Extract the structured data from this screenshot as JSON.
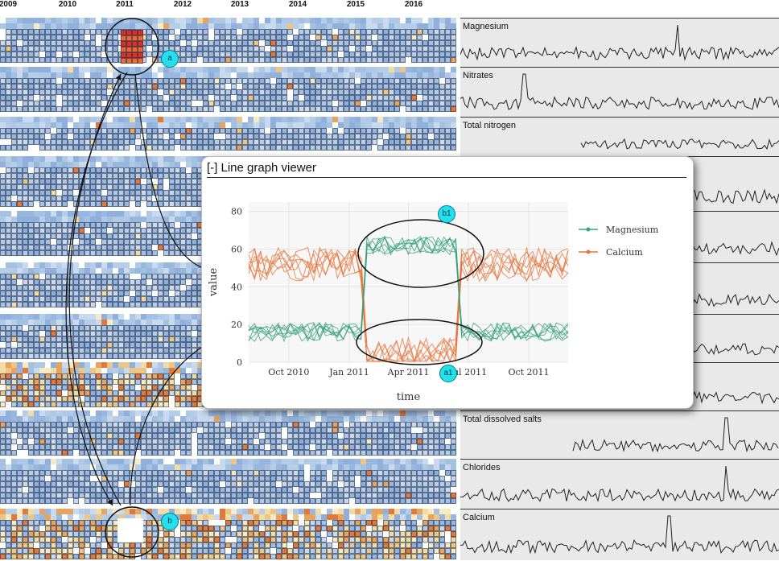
{
  "timeline": {
    "years": [
      "2009",
      "2010",
      "2011",
      "2012",
      "2013",
      "2014",
      "2015",
      "2016"
    ]
  },
  "sparklines": {
    "panels": [
      {
        "label": "Magnesium"
      },
      {
        "label": "Nitrates"
      },
      {
        "label": "Total nitrogen"
      },
      {
        "label": ""
      },
      {
        "label": ""
      },
      {
        "label": ""
      },
      {
        "label": ""
      },
      {
        "label": ""
      },
      {
        "label": "Total dissolved salts"
      },
      {
        "label": "Chlorides"
      },
      {
        "label": "Calcium"
      }
    ]
  },
  "callouts": {
    "a": "a",
    "b": "b",
    "a1": "a1",
    "b1": "b1"
  },
  "line_graph_viewer": {
    "title": "[-] Line graph viewer",
    "chart_data": {
      "type": "line",
      "xlabel": "time",
      "ylabel": "value",
      "x_ticks": [
        "Oct 2010",
        "Jan 2011",
        "Apr 2011",
        "Jul 2011",
        "Oct 2011"
      ],
      "x_range": [
        "2010-08-01",
        "2011-11-30"
      ],
      "y_ticks": [
        0,
        20,
        40,
        60,
        80
      ],
      "ylim": [
        0,
        85
      ],
      "legend_position": "right",
      "grid": true,
      "series": [
        {
          "name": "Magnesium",
          "color": "#3aa27a"
        },
        {
          "name": "Calcium",
          "color": "#e8743b"
        }
      ]
    }
  },
  "colors": {
    "heat_low": "#a9c4e4",
    "heat_mid": "#f1e0a8",
    "heat_high": "#d8322a",
    "spark_bg": "#e9e9e9",
    "callout": "#22e0ee"
  }
}
